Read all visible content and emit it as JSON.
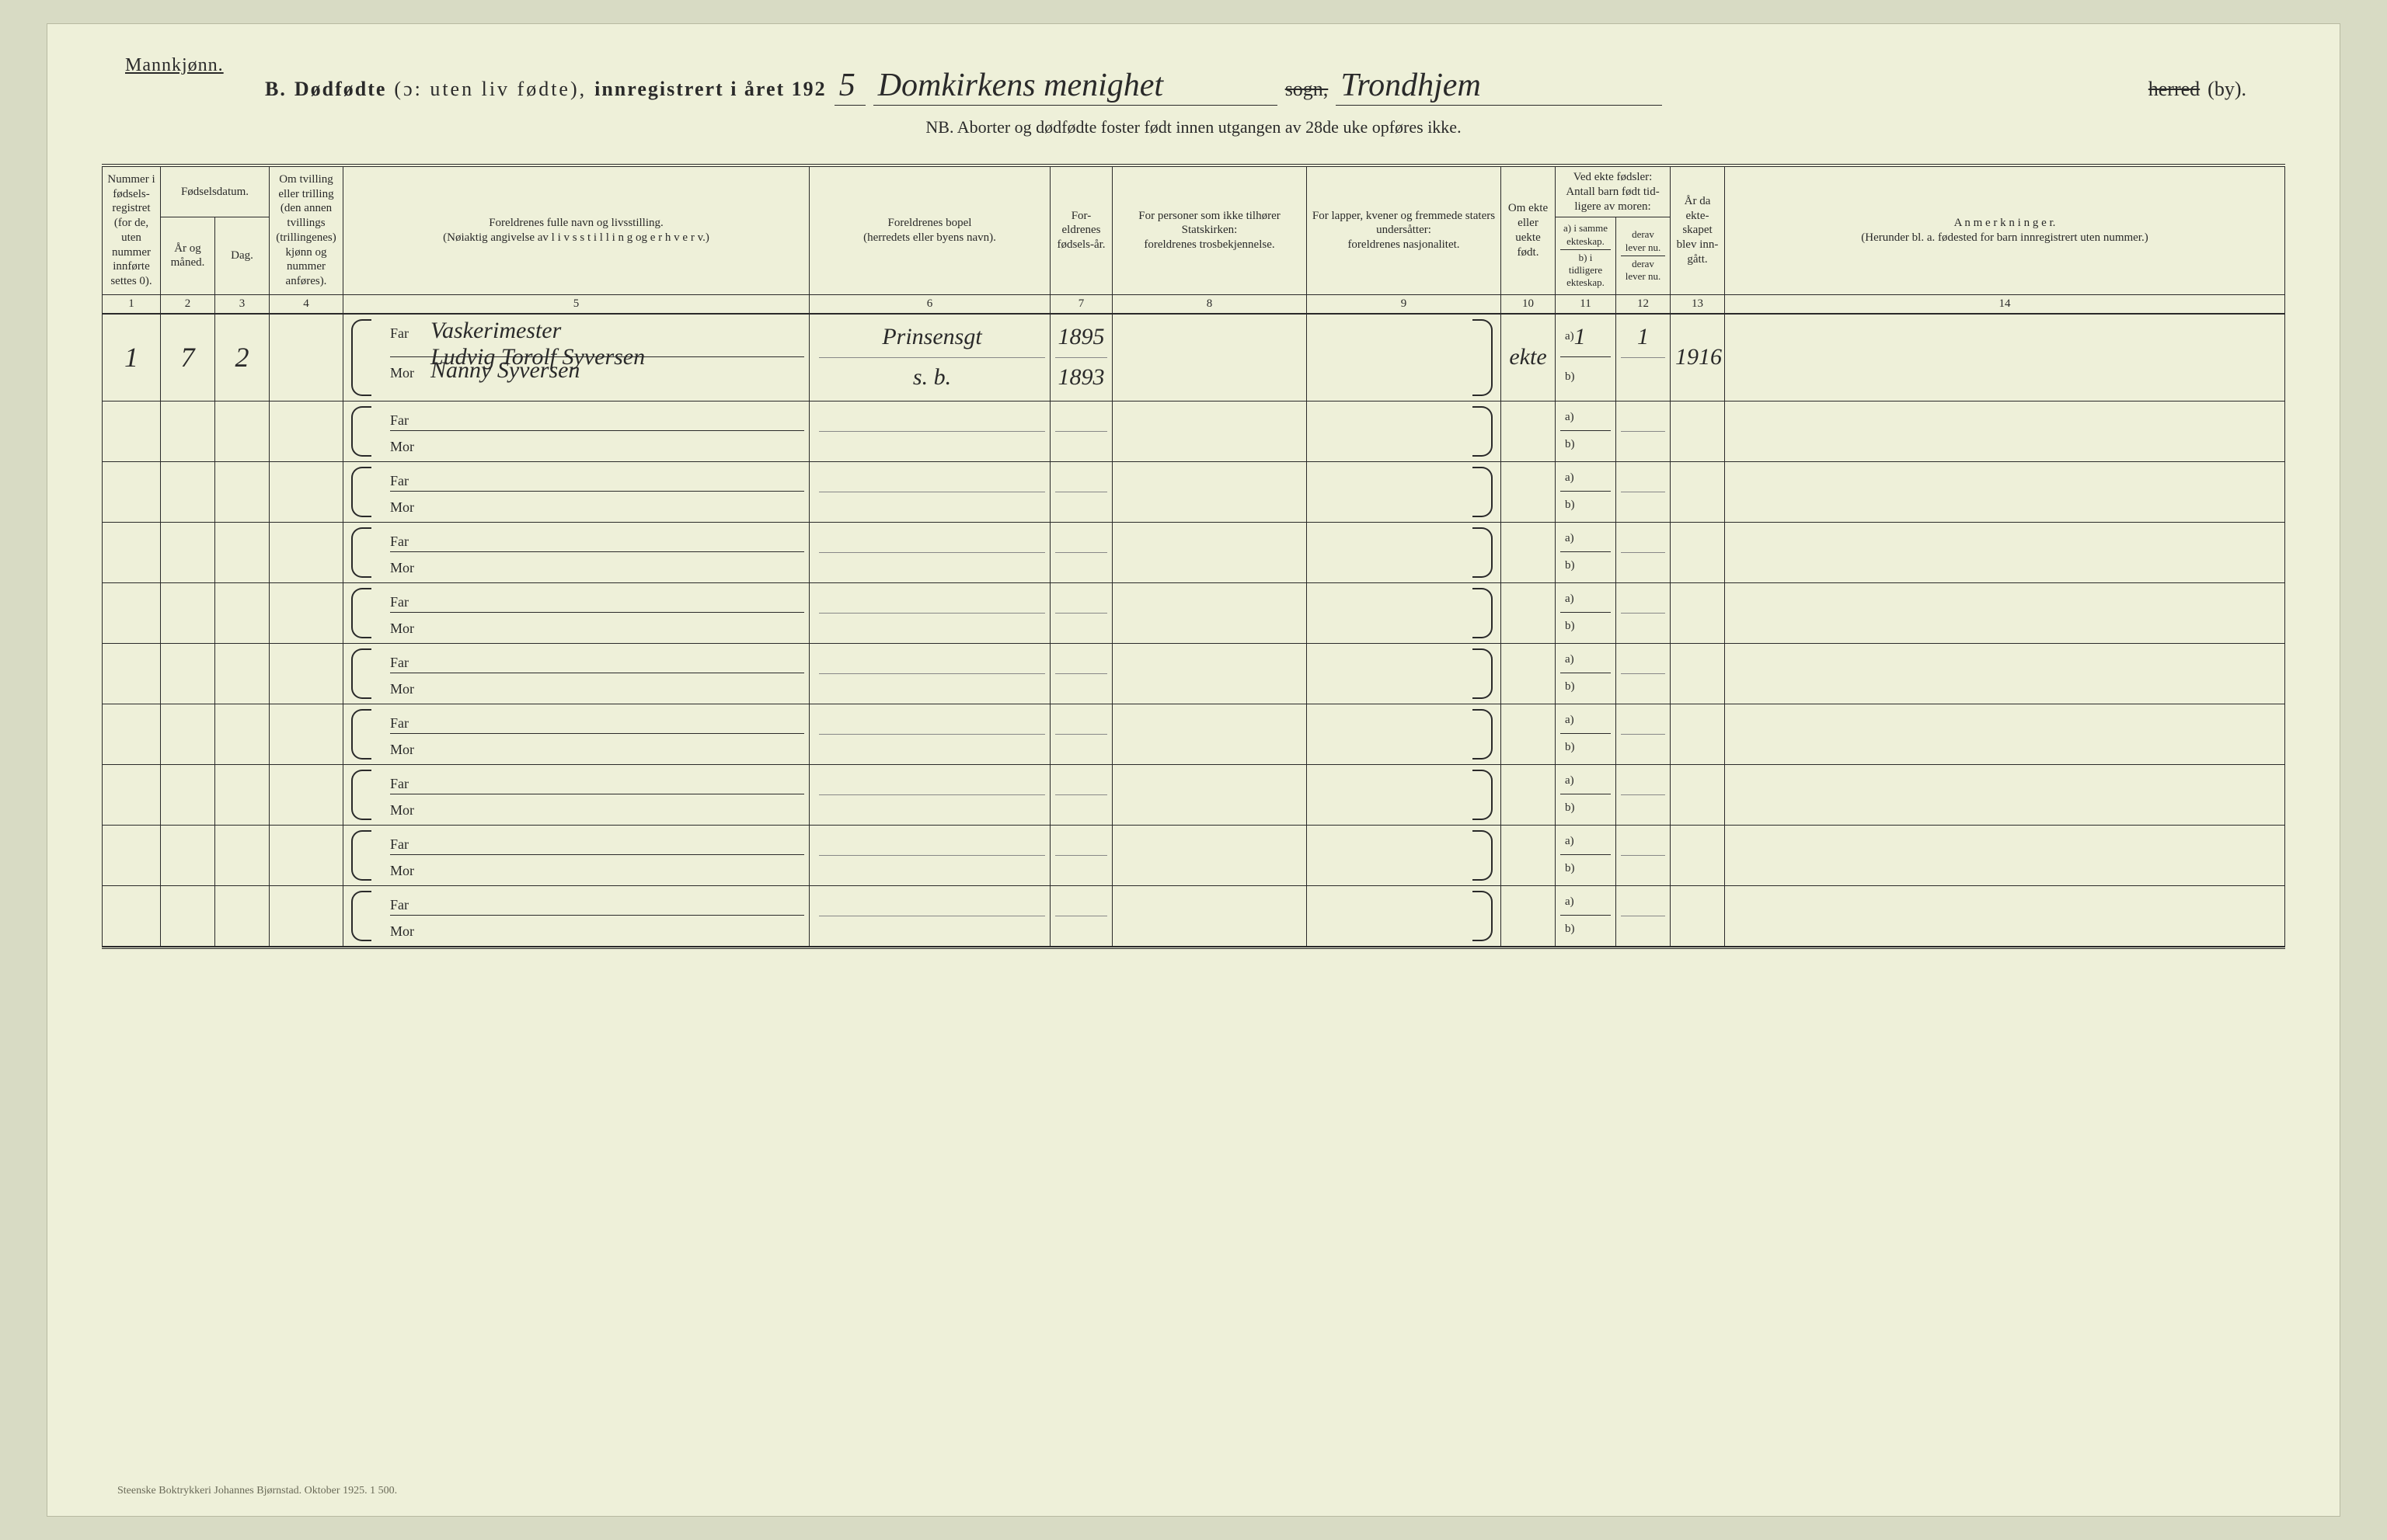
{
  "page": {
    "corner_label": "Mannkjønn.",
    "title_prefix": "B.",
    "title_main": "Dødfødte",
    "title_paren": "(ɔ: uten liv fødte),",
    "title_reg": "innregistrert i året 192",
    "year_suffix_hw": "5",
    "parish_hw": "Domkirkens menighet",
    "sogn_label": "sogn,",
    "city_hw": "Trondhjem",
    "herred_label": "herred",
    "by_label": "(by).",
    "subtitle": "NB. Aborter og dødfødte foster født innen utgangen av 28de uke opføres ikke.",
    "printer": "Steenske Boktrykkeri Johannes Bjørnstad.   Oktober 1925.   1 500."
  },
  "headers": {
    "c1": "Nummer i fødsels-registret (for de, uten nummer innførte settes 0).",
    "c23_top": "Fødselsdatum.",
    "c2": "År og måned.",
    "c3": "Dag.",
    "c4": "Om tvilling eller trilling (den annen tvillings (trillingenes) kjønn og nummer anføres).",
    "c5a": "Foreldrenes fulle navn og livsstilling.",
    "c5b": "(Nøiaktig angivelse av l i v s s t i l l i n g og e r h v e r v.)",
    "c6a": "Foreldrenes bopel",
    "c6b": "(herredets eller byens navn).",
    "c7": "For-eldrenes fødsels-år.",
    "c8a": "For personer som ikke tilhører Statskirken:",
    "c8b": "foreldrenes trosbekjennelse.",
    "c9a": "For lapper, kvener og fremmede staters undersåtter:",
    "c9b": "foreldrenes nasjonalitet.",
    "c10": "Om ekte eller uekte født.",
    "c11_top": "Ved ekte fødsler: Antall barn født tid-ligere av moren:",
    "c11a": "a) i samme ekteskap.",
    "c11b": "b) i tidligere ekteskap.",
    "c12": "derav lever nu.",
    "c12b": "derav lever nu.",
    "c13": "År da ekte-skapet blev inn-gått.",
    "c14a": "A n m e r k n i n g e r.",
    "c14b": "(Herunder bl. a. fødested for barn innregistrert uten nummer.)",
    "far": "Far",
    "mor": "Mor",
    "ab_a": "a)",
    "ab_b": "b)"
  },
  "colnums": [
    "1",
    "2",
    "3",
    "4",
    "5",
    "6",
    "7",
    "8",
    "9",
    "10",
    "11",
    "12",
    "13",
    "14"
  ],
  "rows": [
    {
      "num": "1",
      "month": "7",
      "day": "2",
      "twin": "",
      "far_occ": "Vaskerimester",
      "far_name": "Ludvig Torolf Syversen",
      "mor_name": "Nanny Syversen",
      "far_place": "Prinsensgt",
      "mor_place": "s. b.",
      "far_year": "1895",
      "mor_year": "1893",
      "col8": "",
      "col9": "",
      "ekte": "ekte",
      "c11a": "1",
      "c11b": "",
      "c12a": "1",
      "c12b": "",
      "c13": "1916",
      "c14": ""
    },
    {
      "num": "",
      "month": "",
      "day": "",
      "twin": "",
      "far_occ": "",
      "far_name": "",
      "mor_name": "",
      "far_place": "",
      "mor_place": "",
      "far_year": "",
      "mor_year": "",
      "col8": "",
      "col9": "",
      "ekte": "",
      "c11a": "",
      "c11b": "",
      "c12a": "",
      "c12b": "",
      "c13": "",
      "c14": ""
    },
    {
      "num": "",
      "month": "",
      "day": "",
      "twin": "",
      "far_occ": "",
      "far_name": "",
      "mor_name": "",
      "far_place": "",
      "mor_place": "",
      "far_year": "",
      "mor_year": "",
      "col8": "",
      "col9": "",
      "ekte": "",
      "c11a": "",
      "c11b": "",
      "c12a": "",
      "c12b": "",
      "c13": "",
      "c14": ""
    },
    {
      "num": "",
      "month": "",
      "day": "",
      "twin": "",
      "far_occ": "",
      "far_name": "",
      "mor_name": "",
      "far_place": "",
      "mor_place": "",
      "far_year": "",
      "mor_year": "",
      "col8": "",
      "col9": "",
      "ekte": "",
      "c11a": "",
      "c11b": "",
      "c12a": "",
      "c12b": "",
      "c13": "",
      "c14": ""
    },
    {
      "num": "",
      "month": "",
      "day": "",
      "twin": "",
      "far_occ": "",
      "far_name": "",
      "mor_name": "",
      "far_place": "",
      "mor_place": "",
      "far_year": "",
      "mor_year": "",
      "col8": "",
      "col9": "",
      "ekte": "",
      "c11a": "",
      "c11b": "",
      "c12a": "",
      "c12b": "",
      "c13": "",
      "c14": ""
    },
    {
      "num": "",
      "month": "",
      "day": "",
      "twin": "",
      "far_occ": "",
      "far_name": "",
      "mor_name": "",
      "far_place": "",
      "mor_place": "",
      "far_year": "",
      "mor_year": "",
      "col8": "",
      "col9": "",
      "ekte": "",
      "c11a": "",
      "c11b": "",
      "c12a": "",
      "c12b": "",
      "c13": "",
      "c14": ""
    },
    {
      "num": "",
      "month": "",
      "day": "",
      "twin": "",
      "far_occ": "",
      "far_name": "",
      "mor_name": "",
      "far_place": "",
      "mor_place": "",
      "far_year": "",
      "mor_year": "",
      "col8": "",
      "col9": "",
      "ekte": "",
      "c11a": "",
      "c11b": "",
      "c12a": "",
      "c12b": "",
      "c13": "",
      "c14": ""
    },
    {
      "num": "",
      "month": "",
      "day": "",
      "twin": "",
      "far_occ": "",
      "far_name": "",
      "mor_name": "",
      "far_place": "",
      "mor_place": "",
      "far_year": "",
      "mor_year": "",
      "col8": "",
      "col9": "",
      "ekte": "",
      "c11a": "",
      "c11b": "",
      "c12a": "",
      "c12b": "",
      "c13": "",
      "c14": ""
    },
    {
      "num": "",
      "month": "",
      "day": "",
      "twin": "",
      "far_occ": "",
      "far_name": "",
      "mor_name": "",
      "far_place": "",
      "mor_place": "",
      "far_year": "",
      "mor_year": "",
      "col8": "",
      "col9": "",
      "ekte": "",
      "c11a": "",
      "c11b": "",
      "c12a": "",
      "c12b": "",
      "c13": "",
      "c14": ""
    },
    {
      "num": "",
      "month": "",
      "day": "",
      "twin": "",
      "far_occ": "",
      "far_name": "",
      "mor_name": "",
      "far_place": "",
      "mor_place": "",
      "far_year": "",
      "mor_year": "",
      "col8": "",
      "col9": "",
      "ekte": "",
      "c11a": "",
      "c11b": "",
      "c12a": "",
      "c12b": "",
      "c13": "",
      "c14": ""
    }
  ]
}
